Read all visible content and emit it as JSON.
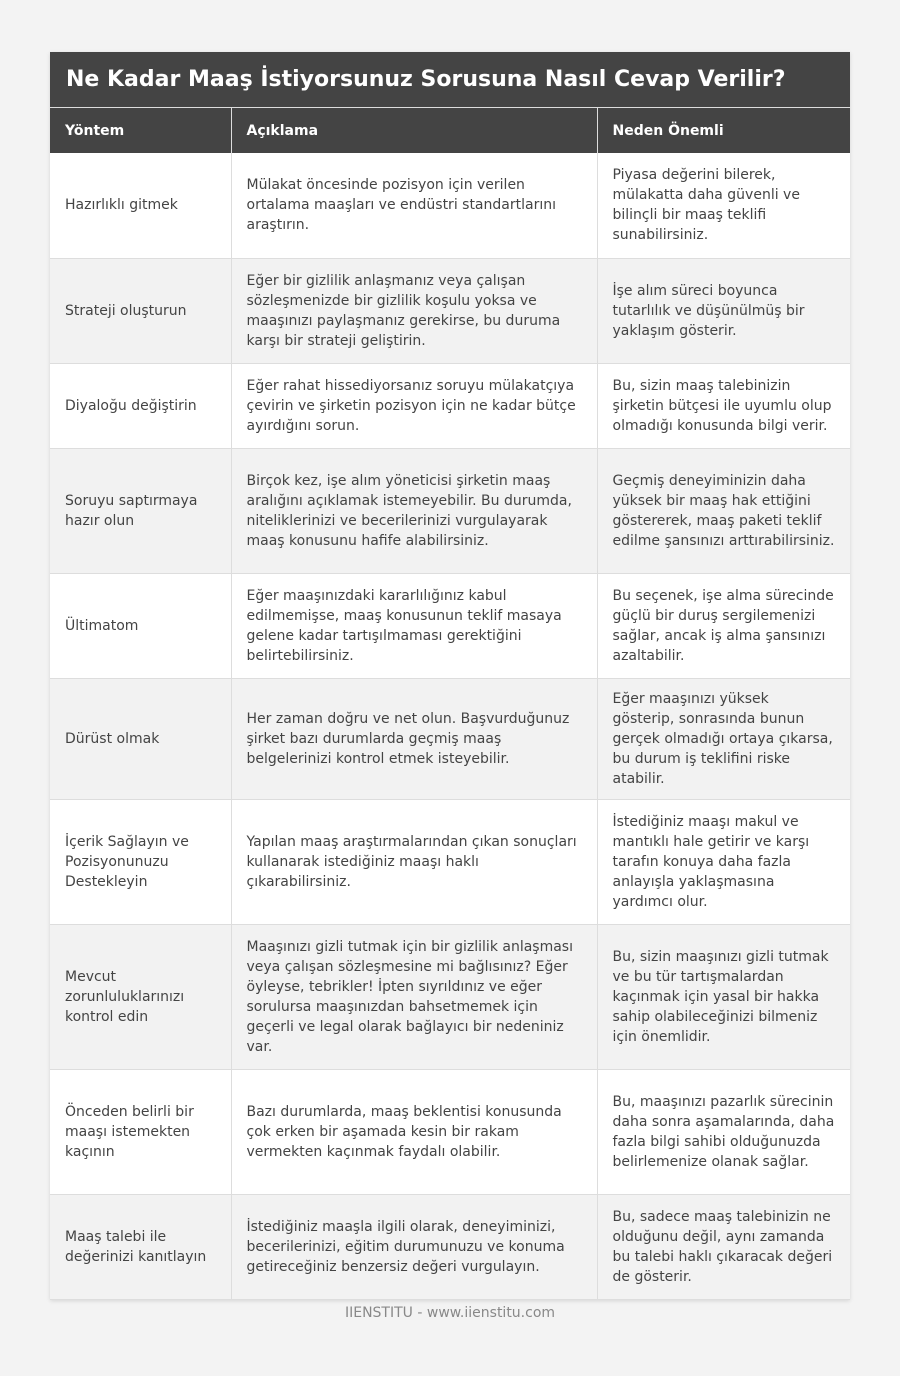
{
  "title": "Ne Kadar Maaş İstiyorsunuz Sorusuna Nasıl Cevap Verilir?",
  "headers": [
    "Yöntem",
    "Açıklama",
    "Neden Önemli"
  ],
  "rows": [
    [
      "Hazırlıklı gitmek",
      "Mülakat öncesinde pozisyon için verilen ortalama maaşları ve endüstri standartlarını araştırın.",
      "Piyasa değerini bilerek, mülakatta daha güvenli ve bilinçli bir maaş teklifi sunabilirsiniz."
    ],
    [
      "Strateji oluşturun",
      "Eğer bir gizlilik anlaşmanız veya çalışan sözleşmenizde bir gizlilik koşulu yoksa ve maaşınızı paylaşmanız gerekirse, bu duruma karşı bir strateji geliştirin.",
      "İşe alım süreci boyunca tutarlılık ve düşünülmüş bir yaklaşım gösterir."
    ],
    [
      "Diyaloğu değiştirin",
      "Eğer rahat hissediyorsanız soruyu mülakatçıya çevirin ve şirketin pozisyon için ne kadar bütçe ayırdığını sorun.",
      "Bu, sizin maaş talebinizin şirketin bütçesi ile uyumlu olup olmadığı konusunda bilgi verir."
    ],
    [
      "Soruyu saptırmaya hazır olun",
      "Birçok kez, işe alım yöneticisi şirketin maaş aralığını açıklamak istemeyebilir. Bu durumda, niteliklerinizi ve becerilerinizi vurgulayarak maaş konusunu hafife alabilirsiniz.",
      "Geçmiş deneyiminizin daha yüksek bir maaş hak ettiğini göstererek, maaş paketi teklif edilme şansınızı arttırabilirsiniz."
    ],
    [
      "Ültimatom",
      "Eğer maaşınızdaki kararlılığınız kabul edilmemişse, maaş konusunun teklif masaya gelene kadar tartışılmaması gerektiğini belirtebilirsiniz.",
      "Bu seçenek, işe alma sürecinde güçlü bir duruş sergilemenizi sağlar, ancak iş alma şansınızı azaltabilir."
    ],
    [
      "Dürüst olmak",
      "Her zaman doğru ve net olun. Başvurduğunuz şirket bazı durumlarda geçmiş maaş belgelerinizi kontrol etmek isteyebilir.",
      "Eğer maaşınızı yüksek gösterip, sonrasında bunun gerçek olmadığı ortaya çıkarsa, bu durum iş teklifini riske atabilir."
    ],
    [
      "İçerik Sağlayın ve Pozisyonunuzu Destekleyin",
      "Yapılan maaş araştırmalarından çıkan sonuçları kullanarak istediğiniz maaşı haklı çıkarabilirsiniz.",
      "İstediğiniz maaşı makul ve mantıklı hale getirir ve karşı tarafın konuya daha fazla anlayışla yaklaşmasına yardımcı olur."
    ],
    [
      "Mevcut zorunluluklarınızı kontrol edin",
      "Maaşınızı gizli tutmak için bir gizlilik anlaşması veya çalışan sözleşmesine mi bağlısınız? Eğer öyleyse, tebrikler! İpten sıyrıldınız ve eğer sorulursa maaşınızdan bahsetmemek için geçerli ve legal olarak bağlayıcı bir nedeniniz var.",
      "Bu, sizin maaşınızı gizli tutmak ve bu tür tartışmalardan kaçınmak için yasal bir hakka sahip olabileceğinizi bilmeniz için önemlidir."
    ],
    [
      "Önceden belirli bir maaşı istemekten kaçının",
      "Bazı durumlarda, maaş beklentisi konusunda çok erken bir aşamada kesin bir rakam vermekten kaçınmak faydalı olabilir.",
      "Bu, maaşınızı pazarlık sürecinin daha sonra aşamalarında, daha fazla bilgi sahibi olduğunuzda belirlemenize olanak sağlar."
    ],
    [
      "Maaş talebi ile değerinizi kanıtlayın",
      "İstediğiniz maaşla ilgili olarak, deneyiminizi, becerilerinizi, eğitim durumunuzu ve konuma getireceğiniz benzersiz değeri vurgulayın.",
      "Bu, sadece maaş talebinizin ne olduğunu değil, aynı zamanda bu talebi haklı çıkaracak değeri de gösterir."
    ]
  ],
  "footer": "IIENSTITU - www.iienstitu.com"
}
